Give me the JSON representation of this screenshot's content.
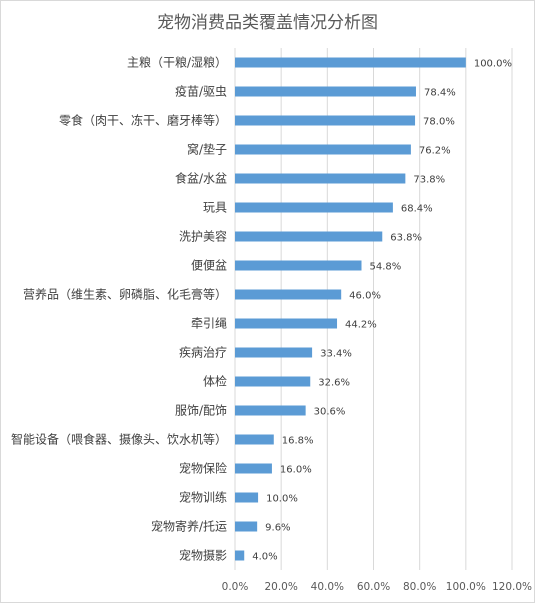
{
  "chart_data": {
    "type": "bar",
    "orientation": "horizontal",
    "title": "宠物消费品类覆盖情况分析图",
    "categories": [
      "主粮（干粮/湿粮）",
      "疫苗/驱虫",
      "零食（肉干、冻干、磨牙棒等）",
      "窝/垫子",
      "食盆/水盆",
      "玩具",
      "洗护美容",
      "便便盆",
      "营养品（维生素、卵磷脂、化毛膏等）",
      "牵引绳",
      "疾病治疗",
      "体检",
      "服饰/配饰",
      "智能设备（喂食器、摄像头、饮水机等）",
      "宠物保险",
      "宠物训练",
      "宠物寄养/托运",
      "宠物摄影"
    ],
    "values": [
      100.0,
      78.4,
      78.0,
      76.2,
      73.8,
      68.4,
      63.8,
      54.8,
      46.0,
      44.2,
      33.4,
      32.6,
      30.6,
      16.8,
      16.0,
      10.0,
      9.6,
      4.0
    ],
    "value_labels": [
      "100.0%",
      "78.4%",
      "78.0%",
      "76.2%",
      "73.8%",
      "68.4%",
      "63.8%",
      "54.8%",
      "46.0%",
      "44.2%",
      "33.4%",
      "32.6%",
      "30.6%",
      "16.8%",
      "16.0%",
      "10.0%",
      "9.6%",
      "4.0%"
    ],
    "xlim": [
      0,
      120
    ],
    "xticks": [
      0,
      20,
      40,
      60,
      80,
      100,
      120
    ],
    "xtick_labels": [
      "0.0%",
      "20.0%",
      "40.0%",
      "60.0%",
      "80.0%",
      "100.0%",
      "120.0%"
    ],
    "grid": true,
    "legend": "none",
    "colors": {
      "bar": "#5b9bd5",
      "grid": "#d9d9d9",
      "text": "#404040"
    }
  }
}
